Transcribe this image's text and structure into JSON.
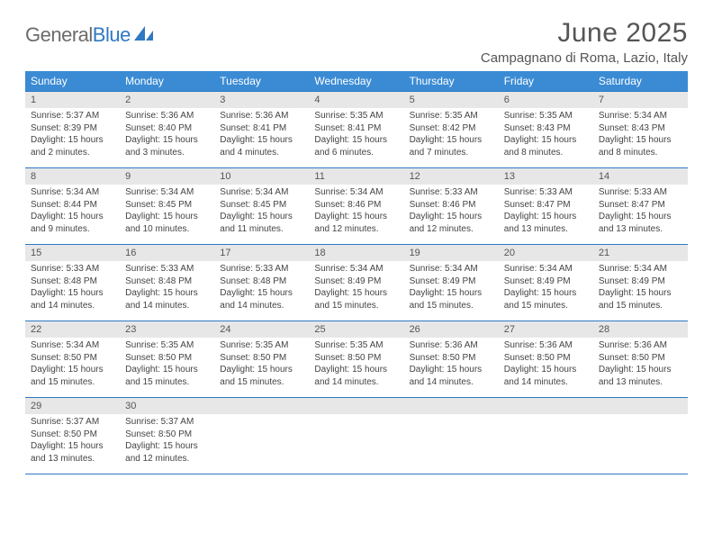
{
  "logo": {
    "word1": "General",
    "word2": "Blue"
  },
  "title": "June 2025",
  "location": "Campagnano di Roma, Lazio, Italy",
  "colors": {
    "header_bg": "#3b8bd4",
    "header_text": "#ffffff",
    "daynum_bg": "#e7e7e7",
    "rule": "#2f78c4",
    "text": "#444444",
    "title_text": "#555555",
    "logo_gray": "#6b6b6b",
    "logo_blue": "#2f78c4"
  },
  "layout": {
    "columns": 7,
    "header_font_size": 12,
    "daynum_font_size": 11,
    "body_font_size": 10,
    "title_font_size": 30,
    "location_font_size": 15
  },
  "weekdays": [
    "Sunday",
    "Monday",
    "Tuesday",
    "Wednesday",
    "Thursday",
    "Friday",
    "Saturday"
  ],
  "weeks": [
    {
      "days": [
        {
          "n": "1",
          "sunrise": "5:37 AM",
          "sunset": "8:39 PM",
          "daylight": "15 hours and 2 minutes."
        },
        {
          "n": "2",
          "sunrise": "5:36 AM",
          "sunset": "8:40 PM",
          "daylight": "15 hours and 3 minutes."
        },
        {
          "n": "3",
          "sunrise": "5:36 AM",
          "sunset": "8:41 PM",
          "daylight": "15 hours and 4 minutes."
        },
        {
          "n": "4",
          "sunrise": "5:35 AM",
          "sunset": "8:41 PM",
          "daylight": "15 hours and 6 minutes."
        },
        {
          "n": "5",
          "sunrise": "5:35 AM",
          "sunset": "8:42 PM",
          "daylight": "15 hours and 7 minutes."
        },
        {
          "n": "6",
          "sunrise": "5:35 AM",
          "sunset": "8:43 PM",
          "daylight": "15 hours and 8 minutes."
        },
        {
          "n": "7",
          "sunrise": "5:34 AM",
          "sunset": "8:43 PM",
          "daylight": "15 hours and 8 minutes."
        }
      ]
    },
    {
      "days": [
        {
          "n": "8",
          "sunrise": "5:34 AM",
          "sunset": "8:44 PM",
          "daylight": "15 hours and 9 minutes."
        },
        {
          "n": "9",
          "sunrise": "5:34 AM",
          "sunset": "8:45 PM",
          "daylight": "15 hours and 10 minutes."
        },
        {
          "n": "10",
          "sunrise": "5:34 AM",
          "sunset": "8:45 PM",
          "daylight": "15 hours and 11 minutes."
        },
        {
          "n": "11",
          "sunrise": "5:34 AM",
          "sunset": "8:46 PM",
          "daylight": "15 hours and 12 minutes."
        },
        {
          "n": "12",
          "sunrise": "5:33 AM",
          "sunset": "8:46 PM",
          "daylight": "15 hours and 12 minutes."
        },
        {
          "n": "13",
          "sunrise": "5:33 AM",
          "sunset": "8:47 PM",
          "daylight": "15 hours and 13 minutes."
        },
        {
          "n": "14",
          "sunrise": "5:33 AM",
          "sunset": "8:47 PM",
          "daylight": "15 hours and 13 minutes."
        }
      ]
    },
    {
      "days": [
        {
          "n": "15",
          "sunrise": "5:33 AM",
          "sunset": "8:48 PM",
          "daylight": "15 hours and 14 minutes."
        },
        {
          "n": "16",
          "sunrise": "5:33 AM",
          "sunset": "8:48 PM",
          "daylight": "15 hours and 14 minutes."
        },
        {
          "n": "17",
          "sunrise": "5:33 AM",
          "sunset": "8:48 PM",
          "daylight": "15 hours and 14 minutes."
        },
        {
          "n": "18",
          "sunrise": "5:34 AM",
          "sunset": "8:49 PM",
          "daylight": "15 hours and 15 minutes."
        },
        {
          "n": "19",
          "sunrise": "5:34 AM",
          "sunset": "8:49 PM",
          "daylight": "15 hours and 15 minutes."
        },
        {
          "n": "20",
          "sunrise": "5:34 AM",
          "sunset": "8:49 PM",
          "daylight": "15 hours and 15 minutes."
        },
        {
          "n": "21",
          "sunrise": "5:34 AM",
          "sunset": "8:49 PM",
          "daylight": "15 hours and 15 minutes."
        }
      ]
    },
    {
      "days": [
        {
          "n": "22",
          "sunrise": "5:34 AM",
          "sunset": "8:50 PM",
          "daylight": "15 hours and 15 minutes."
        },
        {
          "n": "23",
          "sunrise": "5:35 AM",
          "sunset": "8:50 PM",
          "daylight": "15 hours and 15 minutes."
        },
        {
          "n": "24",
          "sunrise": "5:35 AM",
          "sunset": "8:50 PM",
          "daylight": "15 hours and 15 minutes."
        },
        {
          "n": "25",
          "sunrise": "5:35 AM",
          "sunset": "8:50 PM",
          "daylight": "15 hours and 14 minutes."
        },
        {
          "n": "26",
          "sunrise": "5:36 AM",
          "sunset": "8:50 PM",
          "daylight": "15 hours and 14 minutes."
        },
        {
          "n": "27",
          "sunrise": "5:36 AM",
          "sunset": "8:50 PM",
          "daylight": "15 hours and 14 minutes."
        },
        {
          "n": "28",
          "sunrise": "5:36 AM",
          "sunset": "8:50 PM",
          "daylight": "15 hours and 13 minutes."
        }
      ]
    },
    {
      "days": [
        {
          "n": "29",
          "sunrise": "5:37 AM",
          "sunset": "8:50 PM",
          "daylight": "15 hours and 13 minutes."
        },
        {
          "n": "30",
          "sunrise": "5:37 AM",
          "sunset": "8:50 PM",
          "daylight": "15 hours and 12 minutes."
        },
        null,
        null,
        null,
        null,
        null
      ]
    }
  ],
  "labels": {
    "sunrise": "Sunrise:",
    "sunset": "Sunset:",
    "daylight": "Daylight:"
  }
}
